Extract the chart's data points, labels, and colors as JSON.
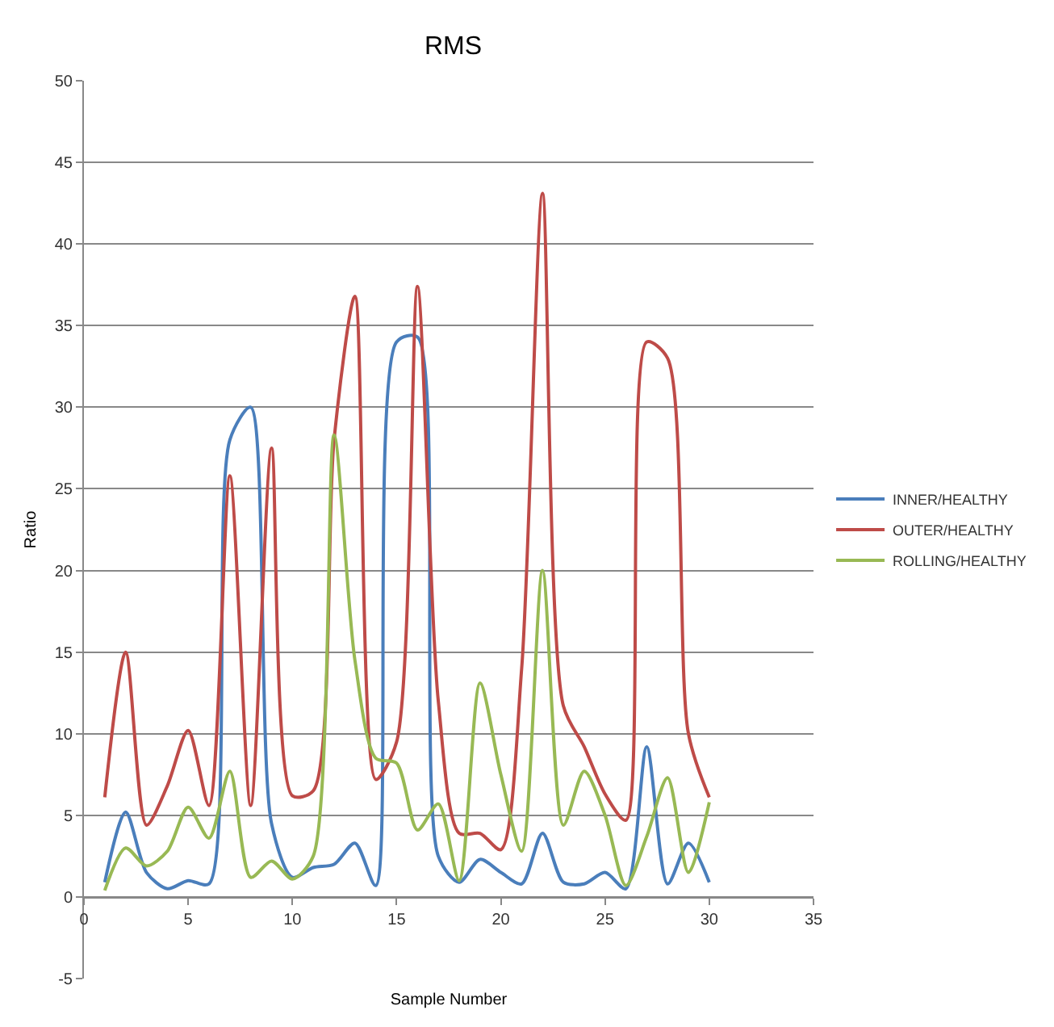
{
  "chart_data": {
    "type": "line",
    "title": "RMS",
    "xlabel": "Sample Number",
    "ylabel": "Ratio",
    "x": [
      1,
      2,
      3,
      4,
      5,
      6,
      7,
      8,
      9,
      10,
      11,
      12,
      13,
      14,
      15,
      16,
      17,
      18,
      19,
      20,
      21,
      22,
      23,
      24,
      25,
      26,
      27,
      28,
      29,
      30
    ],
    "series": [
      {
        "name": "INNER/HEALTHY",
        "color": "#4a7ebb",
        "values": [
          0.9,
          5.2,
          1.5,
          0.5,
          1.0,
          0.8,
          28,
          30,
          4.5,
          1.2,
          1.8,
          2.0,
          3.3,
          0.7,
          34,
          34.3,
          2.5,
          0.9,
          2.3,
          1.5,
          0.8,
          3.9,
          0.9,
          0.8,
          1.5,
          0.5,
          9.2,
          0.8,
          3.3,
          0.9
        ]
      },
      {
        "name": "OUTER/HEALTHY",
        "color": "#be4b48",
        "values": [
          6.1,
          15,
          4.4,
          6.8,
          10.2,
          5.6,
          25.8,
          5.6,
          27.5,
          6.2,
          6.5,
          28,
          36.8,
          7.2,
          9.5,
          37.4,
          12,
          3.9,
          3.9,
          2.9,
          14,
          43.1,
          11.7,
          9.2,
          6.3,
          4.7,
          34,
          33,
          10,
          6.1
        ]
      },
      {
        "name": "ROLLING/HEALTHY",
        "color": "#98b954",
        "values": [
          0.4,
          3.0,
          1.9,
          2.8,
          5.5,
          3.6,
          7.7,
          1.2,
          2.2,
          1.1,
          2.5,
          28.3,
          14.5,
          8.5,
          8.2,
          4.1,
          5.7,
          1.0,
          13.1,
          7.5,
          2.8,
          20,
          4.4,
          7.7,
          5,
          0.7,
          3.7,
          7.3,
          1.5,
          5.8
        ]
      }
    ],
    "xlim": [
      0,
      35
    ],
    "xticks": [
      0,
      5,
      10,
      15,
      20,
      25,
      30,
      35
    ],
    "ylim": [
      -5,
      50
    ],
    "yticks": [
      -5,
      0,
      5,
      10,
      15,
      20,
      25,
      30,
      35,
      40,
      45,
      50
    ],
    "grid": "y",
    "legend": "right",
    "marker": "none",
    "line_style": "solid"
  }
}
